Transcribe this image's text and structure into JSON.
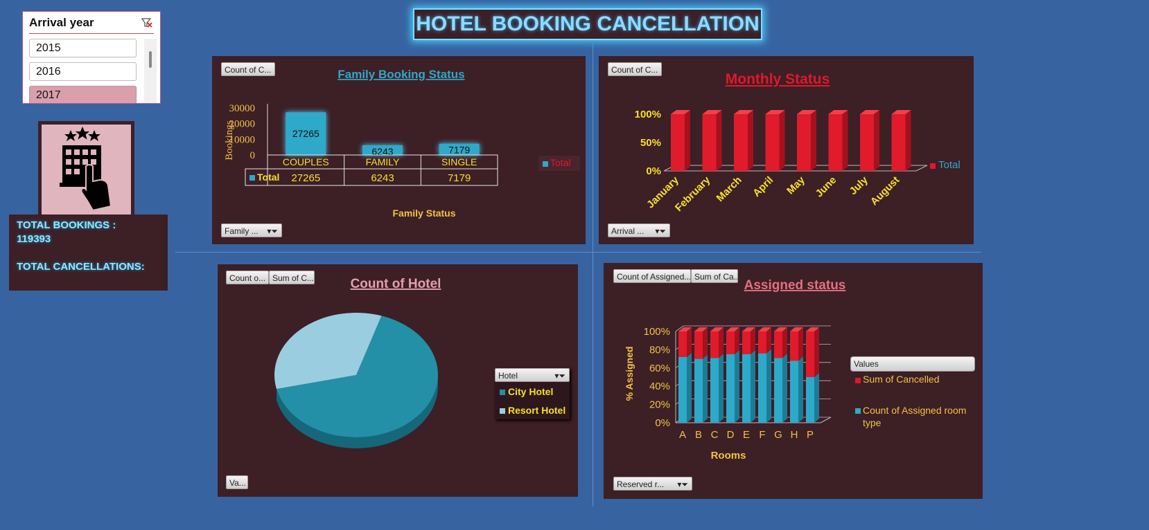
{
  "header": {
    "title": "HOTEL BOOKING CANCELLATION"
  },
  "slicer": {
    "title": "Arrival year",
    "items": [
      "2015",
      "2016",
      "2017"
    ]
  },
  "kpi": {
    "total_bookings": "TOTAL BOOKINGS :",
    "bookings_value": "119393",
    "total_cancellations": "TOTAL CANCELLATIONS:"
  },
  "chart1": {
    "btn_top": "Count of C...",
    "btn_filter": "Family ...",
    "series_label": "Total",
    "header_row_label": "Total"
  },
  "chart2": {
    "btn_top": "Count of C...",
    "btn_filter": "Arrival ...",
    "series_label": "Total"
  },
  "chart3": {
    "btn1": "Count o...",
    "btn2": "Sum of C...",
    "btn_va": "Va...",
    "legend_title": "Hotel"
  },
  "chart4": {
    "btn1": "Count of Assigned...",
    "btn2": "Sum of Ca...",
    "btn_filter": "Reserved r...",
    "legend_title": "Values"
  },
  "colors": {
    "accent_blue": "#2ea9c9",
    "red": "#e01b2b",
    "panel": "#3d1f26",
    "yellow": "#ffe21a"
  },
  "chart_data": [
    {
      "type": "bar",
      "title": "Family Booking Status",
      "xlabel": "Family Status",
      "ylabel": "Bookings",
      "categories": [
        "COUPLES",
        "FAMILY",
        "SINGLE"
      ],
      "series": [
        {
          "name": "Total",
          "values": [
            27265,
            6243,
            7179
          ]
        }
      ],
      "ylim": [
        0,
        30000
      ],
      "yticks": [
        "30000",
        "20000",
        "10000",
        "0"
      ],
      "legend": "right"
    },
    {
      "type": "bar",
      "title": "Monthly Status",
      "categories": [
        "January",
        "February",
        "March",
        "April",
        "May",
        "June",
        "July",
        "August"
      ],
      "series": [
        {
          "name": "Total",
          "values": [
            100,
            100,
            100,
            100,
            100,
            100,
            100,
            100
          ]
        }
      ],
      "ylim": [
        0,
        100
      ],
      "yticks": [
        "100%",
        "50%",
        "0%"
      ],
      "legend": "right"
    },
    {
      "type": "pie",
      "title": "Count of Hotel",
      "categories": [
        "City Hotel",
        "Resort Hotel"
      ],
      "values": [
        66.4,
        33.6
      ],
      "legend": "right"
    },
    {
      "type": "bar",
      "title": "Assigned status",
      "xlabel": "Rooms",
      "ylabel": "% Assigned",
      "categories": [
        "A",
        "B",
        "C",
        "D",
        "E",
        "F",
        "G",
        "H",
        "P"
      ],
      "series": [
        {
          "name": "Count of Assigned room type",
          "values": [
            72,
            70,
            71,
            75,
            75,
            76,
            71,
            68,
            50
          ]
        },
        {
          "name": "Sum of Cancelled",
          "values": [
            28,
            30,
            29,
            25,
            25,
            24,
            29,
            32,
            50
          ]
        }
      ],
      "ylim": [
        0,
        100
      ],
      "yticks": [
        "100%",
        "80%",
        "60%",
        "40%",
        "20%",
        "0%"
      ],
      "legend": "right"
    }
  ]
}
